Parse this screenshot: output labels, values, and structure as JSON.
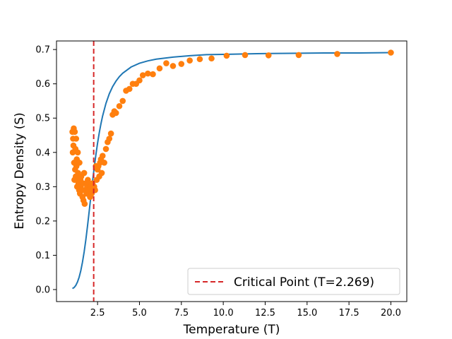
{
  "chart_data": {
    "type": "scatter",
    "title": "",
    "xlabel": "Temperature (T)",
    "ylabel": "Entropy Density (S)",
    "xlim": [
      0.05,
      20.95
    ],
    "ylim": [
      -0.035,
      0.725
    ],
    "xticks": [
      2.5,
      5.0,
      7.5,
      10.0,
      12.5,
      15.0,
      17.5,
      20.0
    ],
    "xtick_labels": [
      "2.5",
      "5.0",
      "7.5",
      "10.0",
      "12.5",
      "15.0",
      "17.5",
      "20.0"
    ],
    "yticks": [
      0.0,
      0.1,
      0.2,
      0.3,
      0.4,
      0.5,
      0.6,
      0.7
    ],
    "ytick_labels": [
      "0.0",
      "0.1",
      "0.2",
      "0.3",
      "0.4",
      "0.5",
      "0.6",
      "0.7"
    ],
    "grid": false,
    "legend": {
      "placement": "lower-right",
      "entries": [
        "Critical Point (T=2.269)"
      ]
    },
    "critical_line": {
      "x": 2.269,
      "label": "Critical Point (T=2.269)",
      "color": "#d62728",
      "style": "dashed"
    },
    "model_curve": {
      "color": "#1f77b4",
      "x": [
        1.0,
        1.1,
        1.2,
        1.3,
        1.4,
        1.5,
        1.6,
        1.7,
        1.8,
        1.9,
        2.0,
        2.1,
        2.2,
        2.3,
        2.4,
        2.5,
        2.6,
        2.7,
        2.8,
        3.0,
        3.2,
        3.4,
        3.6,
        3.8,
        4.0,
        4.5,
        5.0,
        5.5,
        6.0,
        7.0,
        8.0,
        9.0,
        10.0,
        12.0,
        14.0,
        16.0,
        18.0,
        20.0
      ],
      "y": [
        0.003,
        0.006,
        0.012,
        0.022,
        0.036,
        0.055,
        0.08,
        0.11,
        0.145,
        0.185,
        0.228,
        0.272,
        0.315,
        0.356,
        0.393,
        0.427,
        0.457,
        0.483,
        0.506,
        0.543,
        0.571,
        0.592,
        0.608,
        0.621,
        0.631,
        0.649,
        0.66,
        0.667,
        0.672,
        0.678,
        0.682,
        0.685,
        0.686,
        0.688,
        0.689,
        0.69,
        0.69,
        0.691
      ]
    },
    "series": [
      {
        "color": "#ff7f0e",
        "x": [
          1.0,
          1.02,
          1.04,
          1.06,
          1.08,
          1.1,
          1.12,
          1.14,
          1.16,
          1.18,
          1.2,
          1.22,
          1.24,
          1.26,
          1.28,
          1.3,
          1.32,
          1.34,
          1.36,
          1.38,
          1.4,
          1.42,
          1.45,
          1.48,
          1.5,
          1.53,
          1.56,
          1.6,
          1.63,
          1.66,
          1.7,
          1.73,
          1.76,
          1.8,
          1.84,
          1.88,
          1.92,
          1.96,
          2.0,
          2.05,
          2.1,
          2.15,
          2.2,
          2.25,
          2.3,
          2.35,
          2.4,
          2.45,
          2.5,
          2.55,
          2.6,
          2.65,
          2.7,
          2.75,
          2.8,
          2.9,
          3.0,
          3.1,
          3.2,
          3.3,
          3.4,
          3.5,
          3.6,
          3.8,
          4.0,
          4.2,
          4.4,
          4.6,
          4.8,
          5.0,
          5.2,
          5.5,
          5.8,
          6.2,
          6.6,
          7.0,
          7.5,
          8.0,
          8.6,
          9.3,
          10.2,
          11.3,
          12.7,
          14.5,
          16.8,
          20.0
        ],
        "y": [
          0.46,
          0.4,
          0.44,
          0.42,
          0.47,
          0.37,
          0.32,
          0.46,
          0.35,
          0.41,
          0.33,
          0.44,
          0.36,
          0.38,
          0.3,
          0.32,
          0.4,
          0.34,
          0.31,
          0.33,
          0.29,
          0.37,
          0.28,
          0.32,
          0.3,
          0.33,
          0.29,
          0.27,
          0.31,
          0.26,
          0.34,
          0.25,
          0.29,
          0.31,
          0.28,
          0.3,
          0.32,
          0.29,
          0.31,
          0.27,
          0.3,
          0.28,
          0.31,
          0.29,
          0.3,
          0.29,
          0.36,
          0.32,
          0.35,
          0.36,
          0.33,
          0.37,
          0.38,
          0.34,
          0.39,
          0.37,
          0.41,
          0.43,
          0.44,
          0.455,
          0.51,
          0.52,
          0.515,
          0.535,
          0.55,
          0.58,
          0.585,
          0.6,
          0.6,
          0.61,
          0.625,
          0.63,
          0.628,
          0.645,
          0.66,
          0.652,
          0.658,
          0.668,
          0.672,
          0.674,
          0.682,
          0.684,
          0.683,
          0.684,
          0.687,
          0.691
        ]
      }
    ]
  }
}
